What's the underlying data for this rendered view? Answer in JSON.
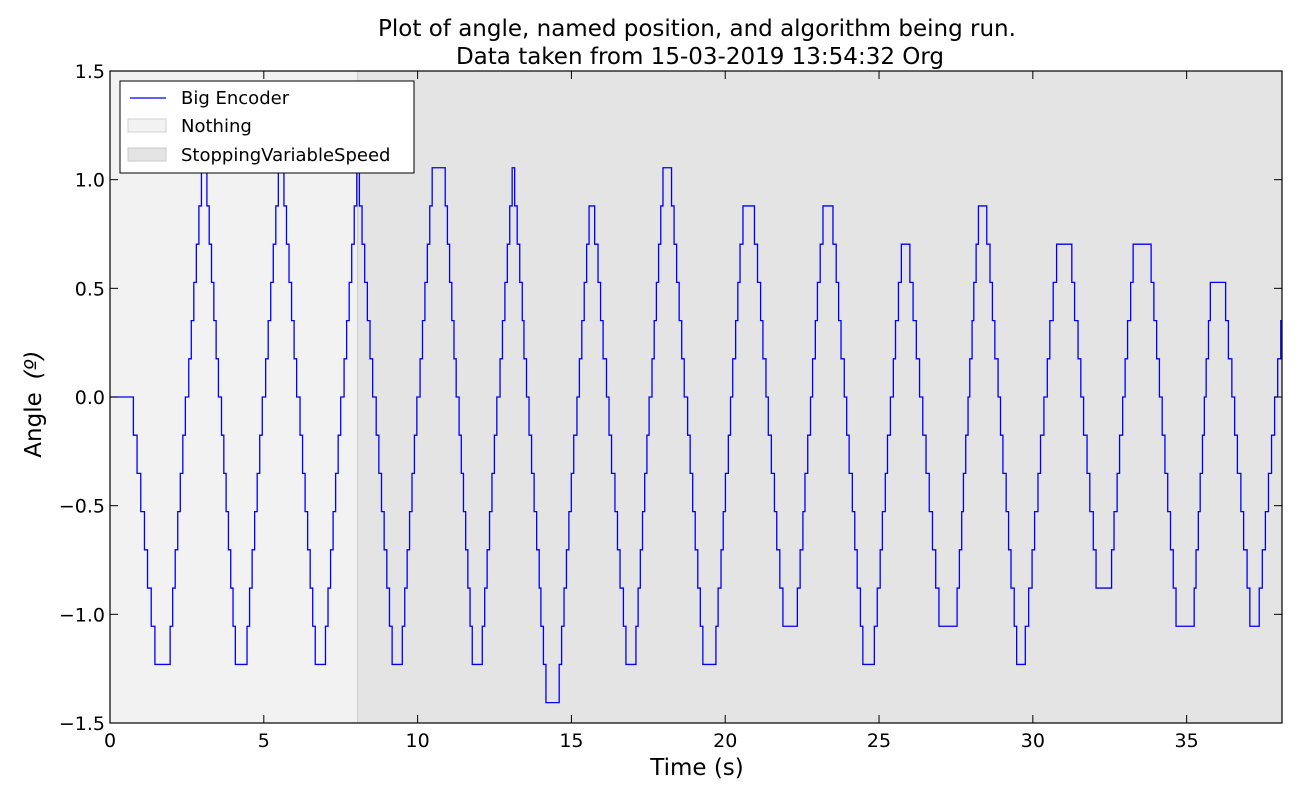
{
  "chart_data": {
    "type": "line",
    "title": "Plot of angle, named position, and algorithm being run.",
    "subtitle": "Data taken from 15-03-2019 13:54:32 Org",
    "xlabel": "Time (s)",
    "ylabel": "Angle",
    "ylabel_unit": "(º)",
    "xlim": [
      0,
      38.1
    ],
    "ylim": [
      -1.5,
      1.5
    ],
    "xticks": [
      0,
      5,
      10,
      15,
      20,
      25,
      30,
      35
    ],
    "yticks": [
      -1.5,
      -1.0,
      -0.5,
      0.0,
      0.5,
      1.0,
      1.5
    ],
    "xtick_labels": [
      "0",
      "5",
      "10",
      "15",
      "20",
      "25",
      "30",
      "35"
    ],
    "ytick_labels": [
      "−1.5",
      "−1.0",
      "−0.5",
      "0.0",
      "0.5",
      "1.0",
      "1.5"
    ],
    "grid": false,
    "legend_position": "top-left",
    "line_color": "#0000ff",
    "regions": [
      {
        "name": "Nothing",
        "x0": 0,
        "x1": 8.05,
        "color": "#f2f2f2"
      },
      {
        "name": "StoppingVariableSpeed",
        "x0": 8.05,
        "x1": 38.1,
        "color": "#e4e4e4"
      }
    ],
    "series": [
      {
        "name": "Big Encoder",
        "step": 0.1758,
        "keypoints": [
          [
            0,
            0.0
          ],
          [
            0.7,
            0.0
          ],
          [
            1.5,
            -1.23
          ],
          [
            1.9,
            -1.23
          ],
          [
            3.0,
            1.055
          ],
          [
            3.1,
            1.055
          ],
          [
            4.1,
            -1.23
          ],
          [
            4.4,
            -1.23
          ],
          [
            5.5,
            1.055
          ],
          [
            5.6,
            1.055
          ],
          [
            6.7,
            -1.23
          ],
          [
            6.95,
            -1.23
          ],
          [
            8.05,
            1.055
          ],
          [
            9.2,
            -1.23
          ],
          [
            9.45,
            -1.23
          ],
          [
            10.5,
            1.055
          ],
          [
            10.85,
            1.055
          ],
          [
            11.8,
            -1.23
          ],
          [
            12.05,
            -1.23
          ],
          [
            13.1,
            1.055
          ],
          [
            14.2,
            -1.406
          ],
          [
            14.55,
            -1.406
          ],
          [
            15.6,
            0.879
          ],
          [
            15.7,
            0.879
          ],
          [
            16.8,
            -1.23
          ],
          [
            17.05,
            -1.23
          ],
          [
            18.0,
            1.055
          ],
          [
            18.2,
            1.055
          ],
          [
            19.3,
            -1.23
          ],
          [
            19.65,
            -1.23
          ],
          [
            20.6,
            0.879
          ],
          [
            20.9,
            0.879
          ],
          [
            21.9,
            -1.055
          ],
          [
            22.3,
            -1.055
          ],
          [
            23.2,
            0.879
          ],
          [
            23.45,
            0.879
          ],
          [
            24.5,
            -1.23
          ],
          [
            24.8,
            -1.23
          ],
          [
            25.75,
            0.703
          ],
          [
            25.95,
            0.703
          ],
          [
            27.0,
            -1.055
          ],
          [
            27.5,
            -1.055
          ],
          [
            28.25,
            0.879
          ],
          [
            28.45,
            0.879
          ],
          [
            29.5,
            -1.23
          ],
          [
            29.7,
            -1.23
          ],
          [
            30.8,
            0.703
          ],
          [
            31.2,
            0.703
          ],
          [
            32.1,
            -0.879
          ],
          [
            32.5,
            -0.879
          ],
          [
            33.3,
            0.703
          ],
          [
            33.8,
            0.703
          ],
          [
            34.7,
            -1.055
          ],
          [
            35.2,
            -1.055
          ],
          [
            35.8,
            0.527
          ],
          [
            36.2,
            0.527
          ],
          [
            37.1,
            -1.055
          ],
          [
            37.3,
            -1.055
          ],
          [
            38.1,
            0.352
          ]
        ]
      }
    ]
  }
}
